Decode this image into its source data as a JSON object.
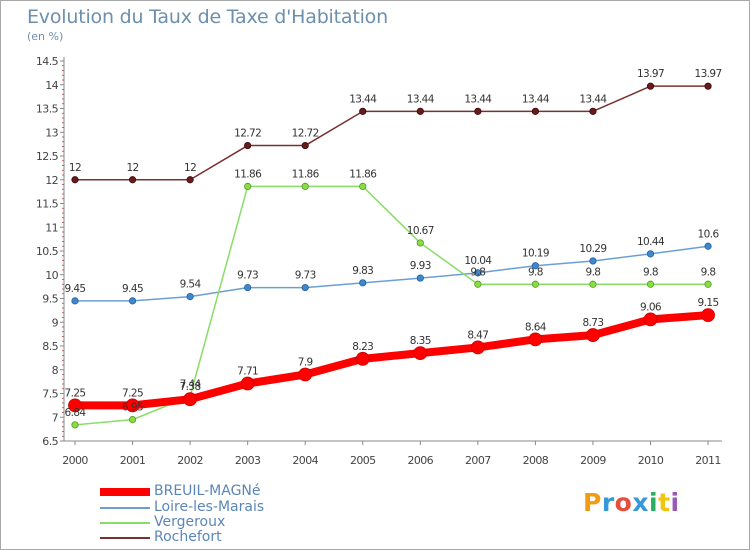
{
  "header": {
    "title": "Evolution du Taux de Taxe d'Habitation",
    "subtitle": "(en %)"
  },
  "logo": {
    "text": "Proxiti",
    "colors": [
      "#f39c12",
      "#3498db",
      "#e74c3c",
      "#3498db",
      "#27ae60",
      "#f1c40f",
      "#9b59b6"
    ]
  },
  "chart_data": {
    "type": "line",
    "title": "Evolution du Taux de Taxe d'Habitation",
    "ylabel": "(en %)",
    "xlabel": "",
    "x": [
      "2000",
      "2001",
      "2002",
      "2003",
      "2004",
      "2005",
      "2006",
      "2007",
      "2008",
      "2009",
      "2010",
      "2011"
    ],
    "ylim": [
      6.5,
      14.5
    ],
    "yticks": [
      "6.5",
      "7",
      "7.5",
      "8",
      "8.5",
      "9",
      "9.5",
      "10",
      "10.5",
      "11",
      "11.5",
      "12",
      "12.5",
      "13",
      "13.5",
      "14",
      "14.5"
    ],
    "grid": false,
    "legend_position": "bottom-left",
    "series": [
      {
        "name": "BREUIL-MAGNé",
        "color": "#ff0000",
        "values": [
          7.25,
          7.25,
          7.38,
          7.71,
          7.9,
          8.23,
          8.35,
          8.47,
          8.64,
          8.73,
          9.06,
          9.15
        ],
        "labels": [
          "7.25",
          "7.25",
          "7.38",
          "7.71",
          "7.9",
          "8.23",
          "8.35",
          "8.47",
          "8.64",
          "8.73",
          "9.06",
          "9.15"
        ]
      },
      {
        "name": "Loire-les-Marais",
        "color": "#6b9fd4",
        "values": [
          9.45,
          9.45,
          9.54,
          9.73,
          9.73,
          9.83,
          9.93,
          10.04,
          10.19,
          10.29,
          10.44,
          10.6
        ],
        "labels": [
          "9.45",
          "9.45",
          "9.54",
          "9.73",
          "9.73",
          "9.83",
          "9.93",
          "10.04",
          "10.19",
          "10.29",
          "10.44",
          "10.6"
        ]
      },
      {
        "name": "Vergeroux",
        "color": "#88dd66",
        "values": [
          6.84,
          6.95,
          7.44,
          11.86,
          11.86,
          11.86,
          10.67,
          9.8,
          9.8,
          9.8,
          9.8,
          9.8
        ],
        "labels": [
          "6.84",
          "6.95",
          "7.44",
          "11.86",
          "11.86",
          "11.86",
          "10.67",
          "9.8",
          "9.8",
          "9.8",
          "9.8",
          "9.8"
        ]
      },
      {
        "name": "Rochefort",
        "color": "#7a3030",
        "values": [
          12,
          12,
          12,
          12.72,
          12.72,
          13.44,
          13.44,
          13.44,
          13.44,
          13.44,
          13.97,
          13.97
        ],
        "labels": [
          "12",
          "12",
          "12",
          "12.72",
          "12.72",
          "13.44",
          "13.44",
          "13.44",
          "13.44",
          "13.44",
          "13.97",
          "13.97"
        ]
      }
    ]
  }
}
